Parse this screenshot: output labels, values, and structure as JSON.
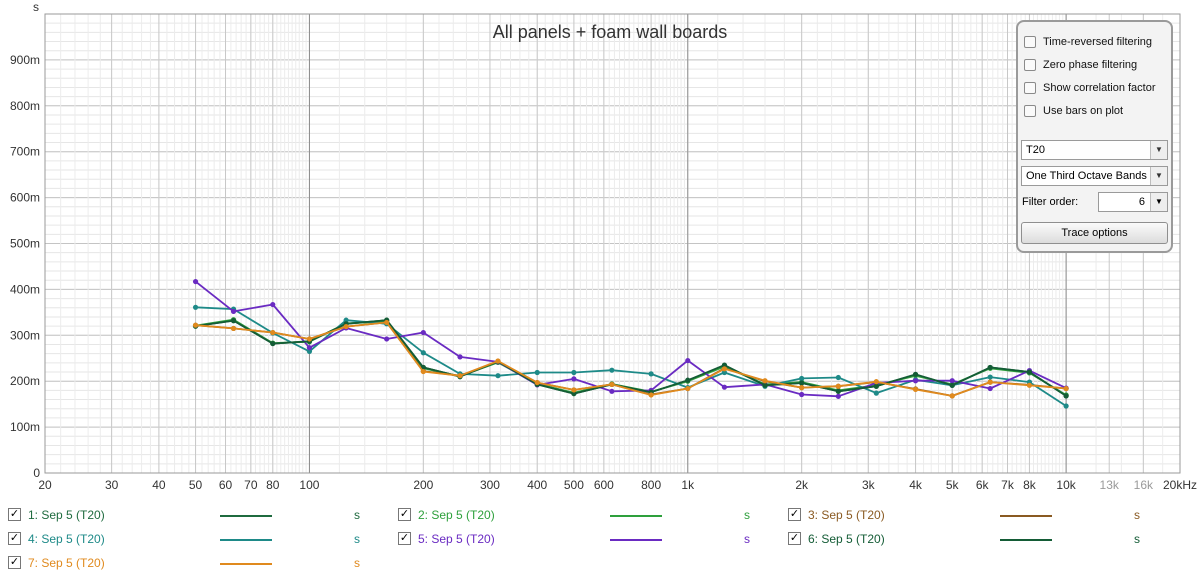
{
  "chart_data": {
    "type": "line",
    "title": "All panels + foam wall boards",
    "ylabel": "s",
    "x_scale": "log",
    "xlim": [
      20,
      20000
    ],
    "ylim": [
      0,
      1.0
    ],
    "grid": true,
    "y_ticks": [
      {
        "v": 0,
        "label": "0"
      },
      {
        "v": 0.1,
        "label": "100m"
      },
      {
        "v": 0.2,
        "label": "200m"
      },
      {
        "v": 0.3,
        "label": "300m"
      },
      {
        "v": 0.4,
        "label": "400m"
      },
      {
        "v": 0.5,
        "label": "500m"
      },
      {
        "v": 0.6,
        "label": "600m"
      },
      {
        "v": 0.7,
        "label": "700m"
      },
      {
        "v": 0.8,
        "label": "800m"
      },
      {
        "v": 0.9,
        "label": "900m"
      }
    ],
    "x_ticks": [
      {
        "v": 20,
        "label": "20"
      },
      {
        "v": 30,
        "label": "30"
      },
      {
        "v": 40,
        "label": "40"
      },
      {
        "v": 50,
        "label": "50"
      },
      {
        "v": 60,
        "label": "60"
      },
      {
        "v": 70,
        "label": "70"
      },
      {
        "v": 80,
        "label": "80"
      },
      {
        "v": 100,
        "label": "100"
      },
      {
        "v": 200,
        "label": "200"
      },
      {
        "v": 300,
        "label": "300"
      },
      {
        "v": 400,
        "label": "400"
      },
      {
        "v": 500,
        "label": "500"
      },
      {
        "v": 600,
        "label": "600"
      },
      {
        "v": 800,
        "label": "800"
      },
      {
        "v": 1000,
        "label": "1k"
      },
      {
        "v": 2000,
        "label": "2k"
      },
      {
        "v": 3000,
        "label": "3k"
      },
      {
        "v": 4000,
        "label": "4k"
      },
      {
        "v": 5000,
        "label": "5k"
      },
      {
        "v": 6000,
        "label": "6k"
      },
      {
        "v": 7000,
        "label": "7k"
      },
      {
        "v": 8000,
        "label": "8k"
      },
      {
        "v": 10000,
        "label": "10k"
      },
      {
        "v": 13000,
        "label": "13k",
        "muted": true
      },
      {
        "v": 16000,
        "label": "16k",
        "muted": true
      },
      {
        "v": 20000,
        "label": "20kHz"
      }
    ],
    "x": [
      50,
      63,
      80,
      100,
      125,
      160,
      200,
      250,
      315,
      400,
      500,
      630,
      800,
      1000,
      1250,
      1600,
      2000,
      2500,
      3150,
      4000,
      5000,
      6300,
      8000,
      10000
    ],
    "series": [
      {
        "name": "1: Sep 5 (T20)",
        "color": "#1f6b3f",
        "values": [
          0.32,
          0.332,
          0.282,
          0.287,
          0.325,
          0.333,
          0.23,
          0.21,
          0.243,
          0.193,
          0.173,
          0.193,
          0.176,
          0.202,
          0.234,
          0.191,
          0.196,
          0.178,
          0.189,
          0.214,
          0.191,
          0.23,
          0.22,
          0.168
        ]
      },
      {
        "name": "2: Sep 5 (T20)",
        "color": "#2ea03c",
        "values": [
          0.321,
          0.334,
          0.283,
          0.286,
          0.326,
          0.33,
          0.228,
          0.211,
          0.241,
          0.194,
          0.175,
          0.194,
          0.177,
          0.2,
          0.232,
          0.193,
          0.198,
          0.18,
          0.191,
          0.212,
          0.193,
          0.228,
          0.218,
          0.17
        ]
      },
      {
        "name": "3: Sep 5 (T20)",
        "color": "#8a5a22",
        "values": [
          0.322,
          0.315,
          0.306,
          0.292,
          0.319,
          0.328,
          0.222,
          0.212,
          0.243,
          0.197,
          0.181,
          0.193,
          0.171,
          0.184,
          0.228,
          0.2,
          0.186,
          0.189,
          0.198,
          0.183,
          0.168,
          0.198,
          0.192,
          0.184
        ]
      },
      {
        "name": "4: Sep 5 (T20)",
        "color": "#1e8a88",
        "values": [
          0.361,
          0.357,
          0.305,
          0.265,
          0.333,
          0.325,
          0.262,
          0.216,
          0.212,
          0.219,
          0.219,
          0.224,
          0.216,
          0.186,
          0.219,
          0.189,
          0.206,
          0.208,
          0.174,
          0.203,
          0.191,
          0.209,
          0.198,
          0.146
        ]
      },
      {
        "name": "5: Sep 5 (T20)",
        "color": "#6a2bc2",
        "values": [
          0.417,
          0.352,
          0.367,
          0.273,
          0.316,
          0.292,
          0.306,
          0.253,
          0.242,
          0.192,
          0.205,
          0.178,
          0.18,
          0.245,
          0.187,
          0.193,
          0.171,
          0.167,
          0.196,
          0.201,
          0.201,
          0.184,
          0.223,
          0.185
        ]
      },
      {
        "name": "6: Sep 5 (T20)",
        "color": "#145c36",
        "values": [
          0.32,
          0.332,
          0.282,
          0.287,
          0.325,
          0.333,
          0.23,
          0.21,
          0.243,
          0.193,
          0.173,
          0.193,
          0.176,
          0.202,
          0.235,
          0.191,
          0.196,
          0.178,
          0.189,
          0.215,
          0.191,
          0.23,
          0.22,
          0.168
        ]
      },
      {
        "name": "7: Sep 5 (T20)",
        "color": "#e08a1e",
        "values": [
          0.322,
          0.315,
          0.306,
          0.292,
          0.319,
          0.328,
          0.221,
          0.212,
          0.244,
          0.197,
          0.181,
          0.193,
          0.17,
          0.184,
          0.227,
          0.201,
          0.186,
          0.189,
          0.199,
          0.182,
          0.168,
          0.198,
          0.191,
          0.184
        ]
      }
    ]
  },
  "axis_unit": "s",
  "panel": {
    "checkboxes": [
      {
        "label": "Time-reversed filtering",
        "checked": false
      },
      {
        "label": "Zero phase filtering",
        "checked": false
      },
      {
        "label": "Show correlation factor",
        "checked": false
      },
      {
        "label": "Use bars on plot",
        "checked": false
      }
    ],
    "metric_select": "T20",
    "bands_select": "One Third Octave Bands",
    "filter_order_label": "Filter order:",
    "filter_order_value": "6",
    "trace_options_label": "Trace options"
  },
  "legend": {
    "unit": "s",
    "check_glyph": "✓",
    "items": [
      {
        "label": "1: Sep 5 (T20)",
        "color": "#1f6b3f",
        "checked": true
      },
      {
        "label": "2: Sep 5 (T20)",
        "color": "#2ea03c",
        "checked": true
      },
      {
        "label": "3: Sep 5 (T20)",
        "color": "#8a5a22",
        "checked": true
      },
      {
        "label": "4: Sep 5 (T20)",
        "color": "#1e8a88",
        "checked": true
      },
      {
        "label": "5: Sep 5 (T20)",
        "color": "#6a2bc2",
        "checked": true
      },
      {
        "label": "6: Sep 5 (T20)",
        "color": "#145c36",
        "checked": true
      },
      {
        "label": "7: Sep 5 (T20)",
        "color": "#e08a1e",
        "checked": true
      }
    ]
  }
}
